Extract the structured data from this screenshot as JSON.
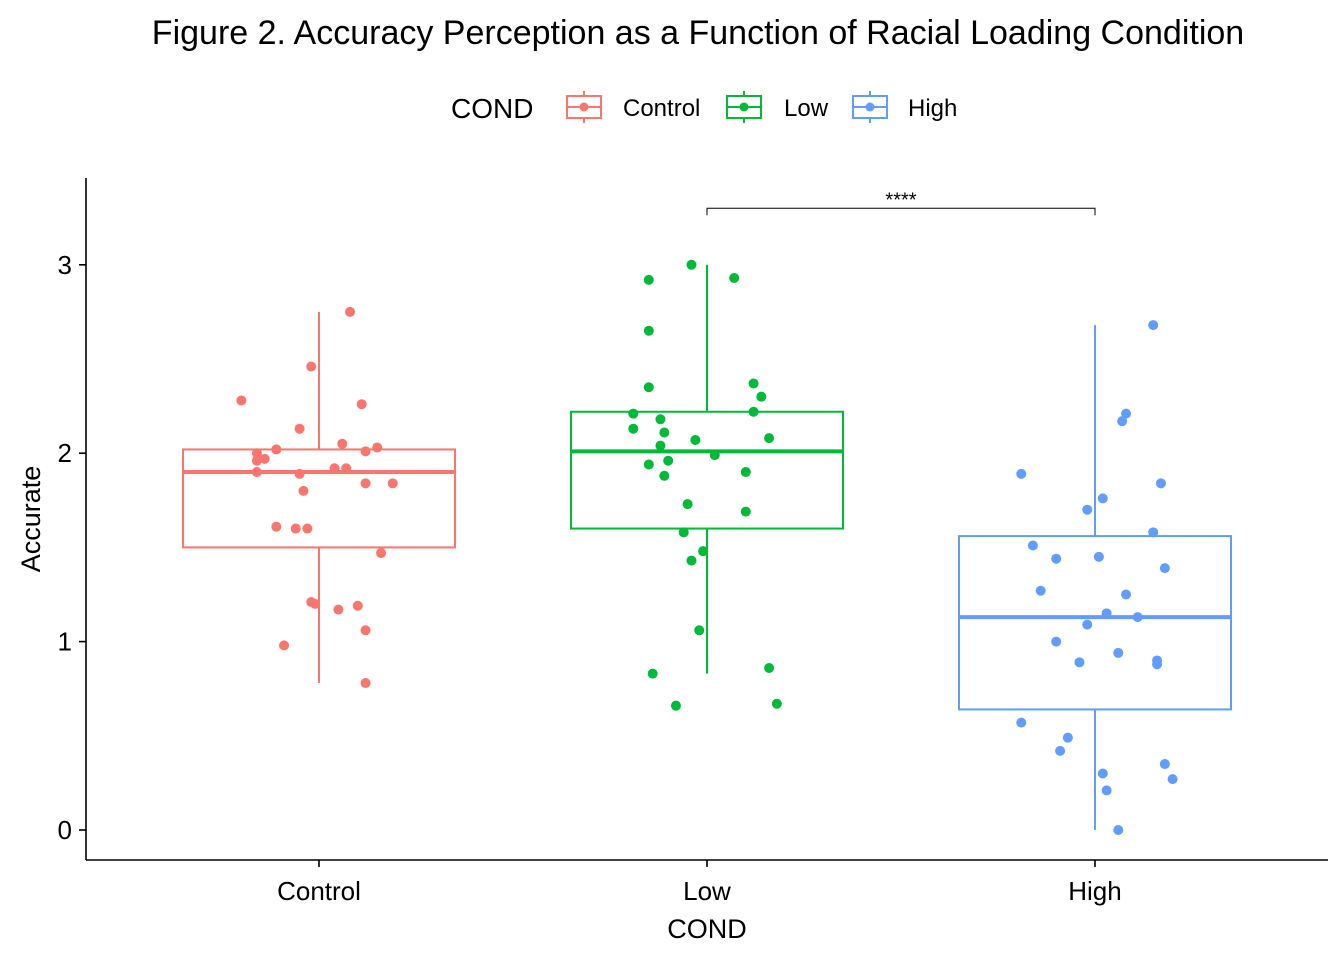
{
  "chart_data": {
    "type": "boxplot",
    "title": "Figure 2. Accuracy Perception as a Function of Racial Loading Condition",
    "xlabel": "COND",
    "ylabel": "Accurate",
    "ylim": [
      -0.15,
      3.45
    ],
    "yticks": [
      "0",
      "1",
      "2",
      "3"
    ],
    "categories": [
      "Control",
      "Low",
      "High"
    ],
    "legend": {
      "title": "COND",
      "position": "top",
      "entries": [
        "Control",
        "Low",
        "High"
      ]
    },
    "colors": {
      "Control": "#F8766D",
      "Low": "#00BA38",
      "High": "#619CFF"
    },
    "grid": false,
    "significance": {
      "from": "Low",
      "to": "High",
      "y": 3.3,
      "label": "****"
    },
    "boxes": [
      {
        "name": "Control",
        "lower_whisker": 0.78,
        "q1": 1.5,
        "median": 1.9,
        "q3": 2.02,
        "upper_whisker": 2.75
      },
      {
        "name": "Low",
        "lower_whisker": 0.83,
        "q1": 1.6,
        "median": 2.01,
        "q3": 2.22,
        "upper_whisker": 3.0
      },
      {
        "name": "High",
        "lower_whisker": 0.0,
        "q1": 0.64,
        "median": 1.13,
        "q3": 1.56,
        "upper_whisker": 2.68
      }
    ],
    "points": [
      {
        "group": "Control",
        "values": [
          {
            "jitter": -0.2,
            "y": 2.28
          },
          {
            "jitter": 0.08,
            "y": 2.75
          },
          {
            "jitter": -0.02,
            "y": 2.46
          },
          {
            "jitter": 0.11,
            "y": 2.26
          },
          {
            "jitter": -0.05,
            "y": 2.13
          },
          {
            "jitter": 0.06,
            "y": 2.05
          },
          {
            "jitter": 0.15,
            "y": 2.03
          },
          {
            "jitter": 0.12,
            "y": 2.01
          },
          {
            "jitter": -0.16,
            "y": 2.0
          },
          {
            "jitter": -0.11,
            "y": 2.02
          },
          {
            "jitter": -0.14,
            "y": 1.97
          },
          {
            "jitter": -0.16,
            "y": 1.96
          },
          {
            "jitter": 0.04,
            "y": 1.92
          },
          {
            "jitter": 0.07,
            "y": 1.92
          },
          {
            "jitter": -0.16,
            "y": 1.9
          },
          {
            "jitter": -0.05,
            "y": 1.89
          },
          {
            "jitter": 0.12,
            "y": 1.84
          },
          {
            "jitter": 0.19,
            "y": 1.84
          },
          {
            "jitter": -0.04,
            "y": 1.8
          },
          {
            "jitter": -0.11,
            "y": 1.61
          },
          {
            "jitter": -0.06,
            "y": 1.6
          },
          {
            "jitter": -0.03,
            "y": 1.6
          },
          {
            "jitter": 0.16,
            "y": 1.47
          },
          {
            "jitter": -0.02,
            "y": 1.21
          },
          {
            "jitter": -0.01,
            "y": 1.2
          },
          {
            "jitter": 0.1,
            "y": 1.19
          },
          {
            "jitter": 0.05,
            "y": 1.17
          },
          {
            "jitter": 0.12,
            "y": 1.06
          },
          {
            "jitter": -0.09,
            "y": 0.98
          },
          {
            "jitter": 0.12,
            "y": 0.78
          }
        ]
      },
      {
        "group": "Low",
        "values": [
          {
            "jitter": -0.04,
            "y": 3.0
          },
          {
            "jitter": 0.07,
            "y": 2.93
          },
          {
            "jitter": -0.15,
            "y": 2.92
          },
          {
            "jitter": -0.15,
            "y": 2.65
          },
          {
            "jitter": 0.12,
            "y": 2.37
          },
          {
            "jitter": -0.15,
            "y": 2.35
          },
          {
            "jitter": 0.14,
            "y": 2.3
          },
          {
            "jitter": 0.12,
            "y": 2.22
          },
          {
            "jitter": -0.19,
            "y": 2.21
          },
          {
            "jitter": -0.12,
            "y": 2.18
          },
          {
            "jitter": -0.19,
            "y": 2.13
          },
          {
            "jitter": -0.11,
            "y": 2.11
          },
          {
            "jitter": 0.16,
            "y": 2.08
          },
          {
            "jitter": -0.03,
            "y": 2.07
          },
          {
            "jitter": -0.12,
            "y": 2.04
          },
          {
            "jitter": 0.02,
            "y": 1.99
          },
          {
            "jitter": -0.1,
            "y": 1.96
          },
          {
            "jitter": -0.15,
            "y": 1.94
          },
          {
            "jitter": 0.1,
            "y": 1.9
          },
          {
            "jitter": -0.11,
            "y": 1.88
          },
          {
            "jitter": -0.05,
            "y": 1.73
          },
          {
            "jitter": 0.1,
            "y": 1.69
          },
          {
            "jitter": -0.06,
            "y": 1.58
          },
          {
            "jitter": -0.01,
            "y": 1.48
          },
          {
            "jitter": -0.04,
            "y": 1.43
          },
          {
            "jitter": -0.02,
            "y": 1.06
          },
          {
            "jitter": 0.16,
            "y": 0.86
          },
          {
            "jitter": -0.14,
            "y": 0.83
          },
          {
            "jitter": 0.18,
            "y": 0.67
          },
          {
            "jitter": -0.08,
            "y": 0.66
          }
        ]
      },
      {
        "group": "High",
        "values": [
          {
            "jitter": 0.15,
            "y": 2.68
          },
          {
            "jitter": 0.08,
            "y": 2.21
          },
          {
            "jitter": 0.07,
            "y": 2.17
          },
          {
            "jitter": -0.19,
            "y": 1.89
          },
          {
            "jitter": 0.17,
            "y": 1.84
          },
          {
            "jitter": 0.02,
            "y": 1.76
          },
          {
            "jitter": -0.02,
            "y": 1.7
          },
          {
            "jitter": 0.15,
            "y": 1.58
          },
          {
            "jitter": -0.16,
            "y": 1.51
          },
          {
            "jitter": 0.01,
            "y": 1.45
          },
          {
            "jitter": -0.1,
            "y": 1.44
          },
          {
            "jitter": 0.18,
            "y": 1.39
          },
          {
            "jitter": -0.14,
            "y": 1.27
          },
          {
            "jitter": 0.08,
            "y": 1.25
          },
          {
            "jitter": 0.03,
            "y": 1.15
          },
          {
            "jitter": 0.11,
            "y": 1.13
          },
          {
            "jitter": -0.02,
            "y": 1.09
          },
          {
            "jitter": -0.1,
            "y": 1.0
          },
          {
            "jitter": 0.06,
            "y": 0.94
          },
          {
            "jitter": 0.16,
            "y": 0.9
          },
          {
            "jitter": -0.04,
            "y": 0.89
          },
          {
            "jitter": 0.16,
            "y": 0.88
          },
          {
            "jitter": -0.19,
            "y": 0.57
          },
          {
            "jitter": -0.07,
            "y": 0.49
          },
          {
            "jitter": -0.09,
            "y": 0.42
          },
          {
            "jitter": 0.18,
            "y": 0.35
          },
          {
            "jitter": 0.02,
            "y": 0.3
          },
          {
            "jitter": 0.2,
            "y": 0.27
          },
          {
            "jitter": 0.03,
            "y": 0.21
          },
          {
            "jitter": 0.06,
            "y": 0.0
          }
        ]
      }
    ]
  }
}
